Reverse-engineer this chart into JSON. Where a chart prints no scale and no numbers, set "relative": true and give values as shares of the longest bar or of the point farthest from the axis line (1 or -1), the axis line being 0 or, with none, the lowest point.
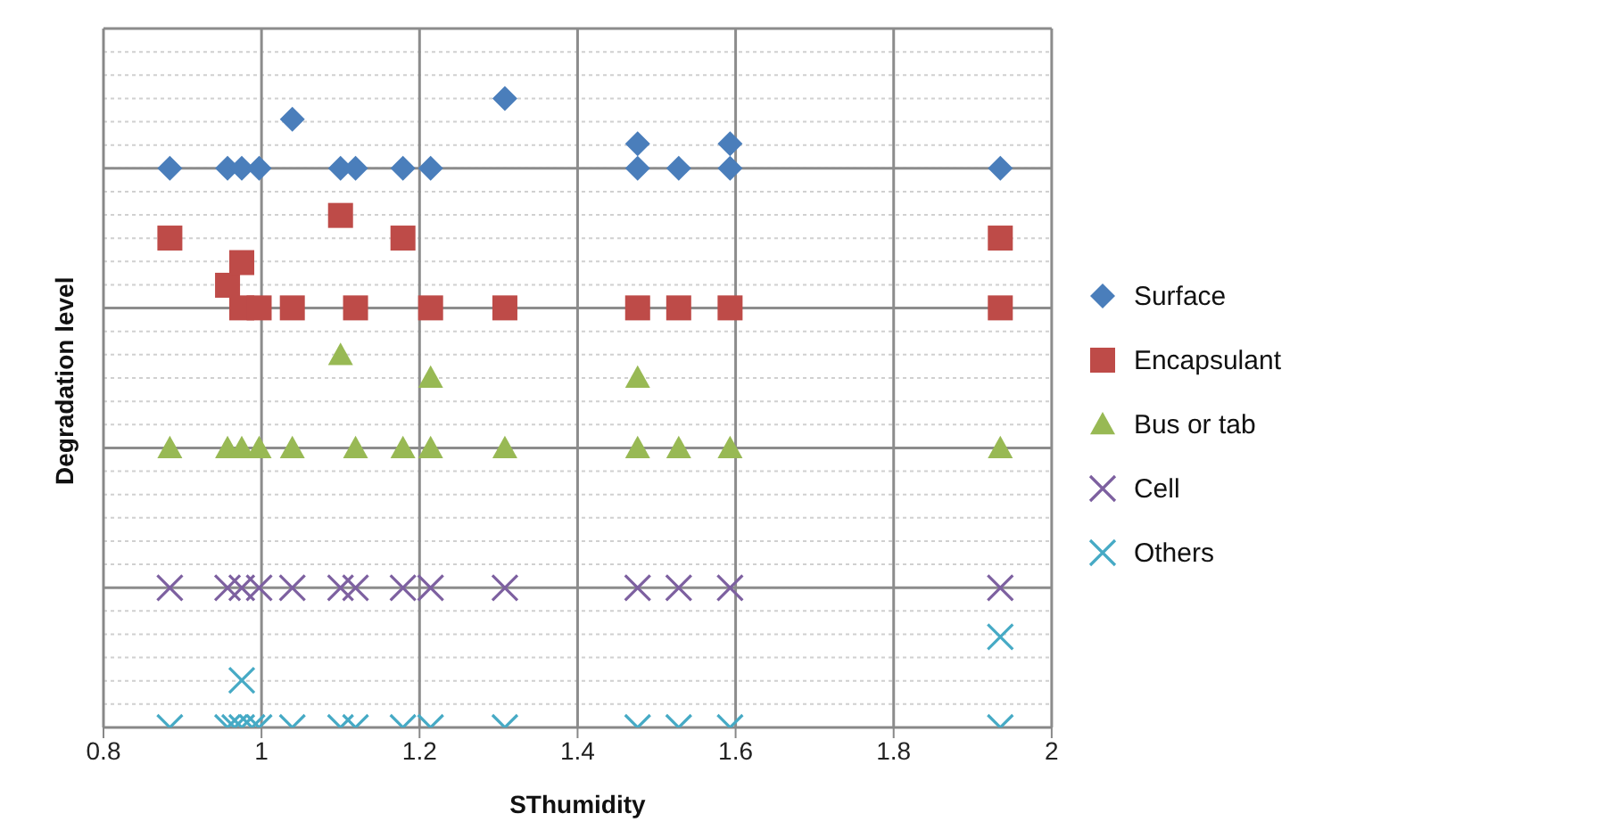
{
  "chart_data": {
    "type": "scatter",
    "relative": true,
    "xlabel": "SThumidity",
    "ylabel": "Degradation level",
    "xlim": [
      0.8,
      2
    ],
    "xticks": [
      0.8,
      1,
      1.2,
      1.4,
      1.6,
      1.8,
      2
    ],
    "grid": true,
    "legend": "right",
    "series": [
      {
        "name": "Surface",
        "color": "#4a7ebb",
        "marker": "diamond",
        "x": [
          0.884,
          0.957,
          0.975,
          0.997,
          1.039,
          1.1,
          1.119,
          1.179,
          1.214,
          1.308,
          1.476,
          1.476,
          1.528,
          1.593,
          1.593,
          1.935
        ],
        "values": [
          0.889,
          0.889,
          0.889,
          0.889,
          0.967,
          0.889,
          0.889,
          0.889,
          0.889,
          1,
          0.928,
          0.889,
          0.889,
          0.928,
          0.889,
          0.889
        ]
      },
      {
        "name": "Encapsulant",
        "color": "#be4b48",
        "marker": "square",
        "x": [
          0.884,
          0.957,
          0.975,
          0.975,
          0.997,
          1.039,
          1.1,
          1.119,
          1.179,
          1.214,
          1.308,
          1.476,
          1.528,
          1.593,
          1.935,
          1.935
        ],
        "values": [
          0.778,
          0.703,
          0.739,
          0.667,
          0.667,
          0.667,
          0.814,
          0.667,
          0.778,
          0.667,
          0.667,
          0.667,
          0.667,
          0.667,
          0.778,
          0.667
        ]
      },
      {
        "name": "Bus or tab",
        "color": "#98b954",
        "marker": "triangle",
        "x": [
          0.884,
          0.957,
          0.975,
          0.997,
          1.039,
          1.1,
          1.119,
          1.179,
          1.214,
          1.214,
          1.308,
          1.476,
          1.476,
          1.528,
          1.593,
          1.935
        ],
        "values": [
          0.444,
          0.444,
          0.444,
          0.444,
          0.444,
          0.592,
          0.444,
          0.444,
          0.556,
          0.444,
          0.444,
          0.556,
          0.444,
          0.444,
          0.444,
          0.444
        ]
      },
      {
        "name": "Cell",
        "color": "#7d60a0",
        "marker": "cross",
        "x": [
          0.884,
          0.957,
          0.975,
          0.997,
          1.039,
          1.1,
          1.119,
          1.179,
          1.214,
          1.308,
          1.476,
          1.528,
          1.593,
          1.935
        ],
        "values": [
          0.222,
          0.222,
          0.222,
          0.222,
          0.222,
          0.222,
          0.222,
          0.222,
          0.222,
          0.222,
          0.222,
          0.222,
          0.222,
          0.222
        ]
      },
      {
        "name": "Others",
        "color": "#46aac5",
        "marker": "cross",
        "x": [
          0.884,
          0.957,
          0.966,
          0.975,
          0.988,
          0.997,
          1.039,
          1.1,
          1.119,
          1.179,
          1.214,
          1.308,
          1.476,
          1.528,
          1.593,
          1.935,
          0.975,
          1.935
        ],
        "values": [
          0,
          0,
          0,
          0,
          0,
          0,
          0,
          0,
          0,
          0,
          0,
          0,
          0,
          0,
          0,
          0,
          0.075,
          0.144
        ]
      }
    ]
  }
}
